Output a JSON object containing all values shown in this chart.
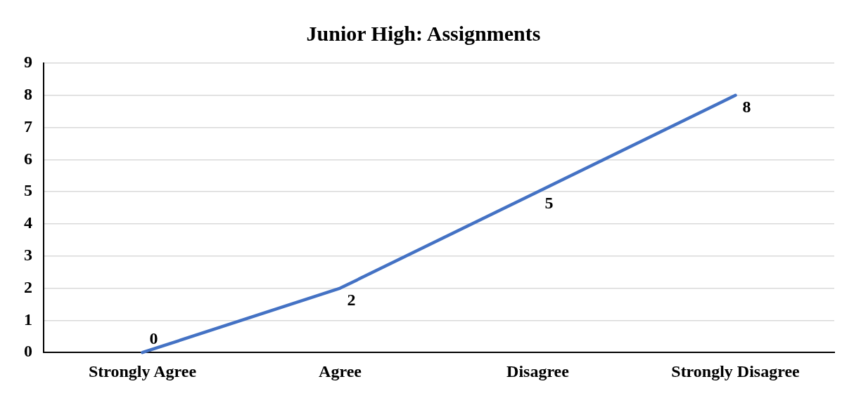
{
  "chart_data": {
    "type": "line",
    "title": "Junior High: Assignments",
    "categories": [
      "Strongly Agree",
      "Agree",
      "Disagree",
      "Strongly Disagree"
    ],
    "series": [
      {
        "color": "#4472c4",
        "values": [
          0,
          2,
          5,
          8
        ]
      }
    ],
    "ylim": [
      0,
      9
    ],
    "yticks": [
      0,
      1,
      2,
      3,
      4,
      5,
      6,
      7,
      8,
      9
    ],
    "grid": "y",
    "legend": false,
    "marker": "none",
    "line_style": "solid",
    "data_labels": true
  }
}
